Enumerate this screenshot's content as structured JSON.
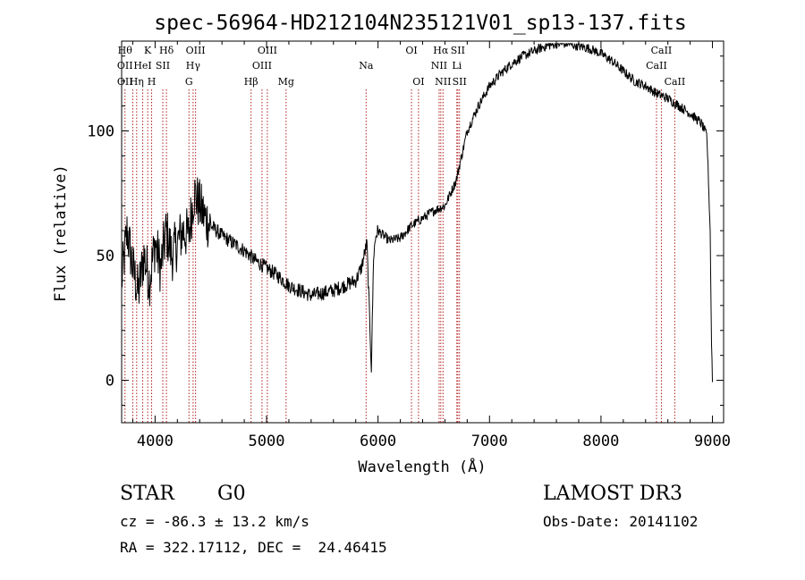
{
  "chart_data": {
    "type": "line",
    "title": "spec-56964-HD212104N235121V01_sp13-137.fits",
    "xlabel": "Wavelength (Å)",
    "ylabel": "Flux (relative)",
    "xlim": [
      3700,
      9100
    ],
    "ylim": [
      -17,
      136
    ],
    "xticks": [
      4000,
      5000,
      6000,
      7000,
      8000,
      9000
    ],
    "yticks": [
      0,
      50,
      100
    ],
    "series": [
      {
        "x": [
          3700,
          3750,
          3800,
          3850,
          3900,
          3950,
          4000,
          4050,
          4100,
          4150,
          4200,
          4250,
          4300,
          4350,
          4400,
          4450,
          4500,
          4600,
          4700,
          4800,
          4900,
          5000,
          5100,
          5200,
          5300,
          5400,
          5500,
          5600,
          5700,
          5800,
          5850,
          5900,
          5920,
          5940,
          5960,
          5980,
          6000,
          6050,
          6100,
          6200,
          6300,
          6400,
          6500,
          6600,
          6700,
          6800,
          6900,
          7000,
          7100,
          7200,
          7300,
          7400,
          7500,
          7600,
          7700,
          7800,
          7900,
          8000,
          8100,
          8200,
          8300,
          8400,
          8500,
          8600,
          8700,
          8800,
          8900,
          8950,
          8980,
          8990,
          9000
        ],
        "y": [
          40,
          60,
          45,
          35,
          50,
          40,
          55,
          45,
          60,
          50,
          55,
          60,
          58,
          75,
          70,
          65,
          62,
          58,
          55,
          52,
          48,
          45,
          42,
          38,
          36,
          34,
          35,
          36,
          38,
          40,
          45,
          55,
          30,
          5,
          50,
          58,
          60,
          58,
          56,
          57,
          62,
          65,
          68,
          70,
          80,
          100,
          110,
          118,
          123,
          127,
          130,
          132,
          134,
          135,
          135,
          134,
          133,
          131,
          128,
          124,
          120,
          118,
          115,
          113,
          110,
          107,
          103,
          98,
          60,
          20,
          0
        ]
      }
    ],
    "line_markers": [
      {
        "wl": 3730,
        "labels": [
          {
            "t": "Hθ",
            "row": 0
          },
          {
            "t": "OII",
            "row": 1
          },
          {
            "t": "OII",
            "row": 2
          }
        ]
      },
      {
        "wl": 3800,
        "labels": []
      },
      {
        "wl": 3835,
        "labels": [
          {
            "t": "Hη",
            "row": 2
          }
        ]
      },
      {
        "wl": 3889,
        "labels": [
          {
            "t": "HeI",
            "row": 1
          }
        ]
      },
      {
        "wl": 3934,
        "labels": [
          {
            "t": "K",
            "row": 0
          }
        ]
      },
      {
        "wl": 3969,
        "labels": [
          {
            "t": "H",
            "row": 2
          }
        ]
      },
      {
        "wl": 4069,
        "labels": [
          {
            "t": "SII",
            "row": 1
          }
        ]
      },
      {
        "wl": 4102,
        "labels": [
          {
            "t": "Hδ",
            "row": 0
          }
        ]
      },
      {
        "wl": 4304,
        "labels": [
          {
            "t": "G",
            "row": 2
          }
        ]
      },
      {
        "wl": 4341,
        "labels": [
          {
            "t": "Hγ",
            "row": 1
          }
        ]
      },
      {
        "wl": 4363,
        "labels": [
          {
            "t": "OIII",
            "row": 0
          }
        ]
      },
      {
        "wl": 4861,
        "labels": [
          {
            "t": "Hβ",
            "row": 2
          }
        ]
      },
      {
        "wl": 4959,
        "labels": [
          {
            "t": "OIII",
            "row": 1
          }
        ]
      },
      {
        "wl": 5007,
        "labels": [
          {
            "t": "OIII",
            "row": 0
          }
        ]
      },
      {
        "wl": 5175,
        "labels": [
          {
            "t": "Mg",
            "row": 2
          }
        ]
      },
      {
        "wl": 5893,
        "labels": [
          {
            "t": "Na",
            "row": 1
          }
        ]
      },
      {
        "wl": 6300,
        "labels": [
          {
            "t": "OI",
            "row": 0
          }
        ]
      },
      {
        "wl": 6363,
        "labels": [
          {
            "t": "OI",
            "row": 2
          }
        ]
      },
      {
        "wl": 6548,
        "labels": [
          {
            "t": "NII",
            "row": 1
          }
        ]
      },
      {
        "wl": 6563,
        "labels": [
          {
            "t": "Hα",
            "row": 0
          }
        ]
      },
      {
        "wl": 6583,
        "labels": [
          {
            "t": "NII",
            "row": 2
          }
        ]
      },
      {
        "wl": 6707,
        "labels": [
          {
            "t": "Li",
            "row": 1
          }
        ]
      },
      {
        "wl": 6716,
        "labels": [
          {
            "t": "SII",
            "row": 0
          }
        ]
      },
      {
        "wl": 6731,
        "labels": [
          {
            "t": "SII",
            "row": 2
          }
        ]
      },
      {
        "wl": 8498,
        "labels": [
          {
            "t": "CaII",
            "row": 1
          }
        ]
      },
      {
        "wl": 8542,
        "labels": [
          {
            "t": "CaII",
            "row": 0
          }
        ]
      },
      {
        "wl": 8662,
        "labels": [
          {
            "t": "CaII",
            "row": 2
          }
        ]
      }
    ],
    "marker_color": "#b22222",
    "grid": false,
    "legend": "none"
  },
  "info": {
    "object_class": "STAR",
    "subclass": "G0",
    "survey": "LAMOST DR3",
    "cz": "cz = -86.3 ± 13.2 km/s",
    "obs_date": "Obs-Date: 20141102",
    "coords": "RA = 322.17112, DEC =  24.46415"
  }
}
